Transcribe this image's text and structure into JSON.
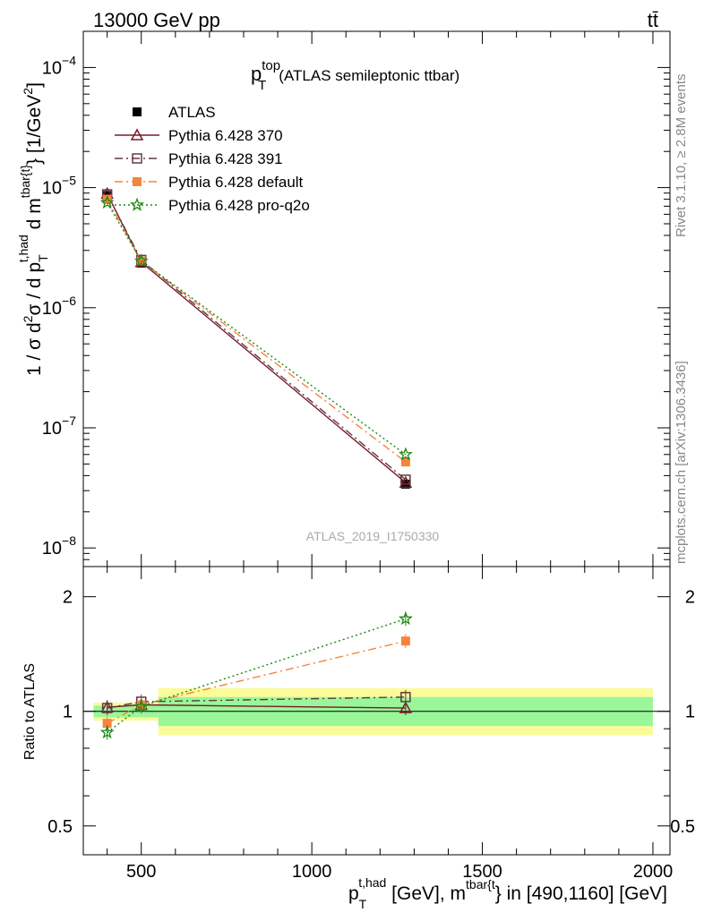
{
  "header": {
    "energy_label": "13000 GeV pp",
    "process_label": "tt̄"
  },
  "side_labels": {
    "rivet": "Rivet 3.1.10, ≥ 2.8M events",
    "mcplots": "mcplots.cern.ch [arXiv:1306.3436]"
  },
  "colors": {
    "atlas": "#000000",
    "p370": "#7b1a2a",
    "p391": "#5e3a45",
    "pdefault": "#f5843c",
    "pq2o": "#1a8a12",
    "band_inner": "#99f799",
    "band_outer": "#fbfb99"
  },
  "chart_data": [
    {
      "type": "line",
      "title_main": "p",
      "title_sup": "top",
      "title_sub": "T",
      "title_rest": "(ATLAS semileptonic ttbar)",
      "watermark": "ATLAS_2019_I1750330",
      "ylabel": "1 / σ d²σ / d p_T^{t,had} d m^{tbar{t}} [1/GeV²]",
      "ylabel_parts": {
        "pre": "1 / σ d",
        "sup2": "2",
        "mid": "σ / d p",
        "sub_T": "T",
        "sup_thad": "t,had",
        "d_m": " d m",
        "sup_tbar": "tbar{t}",
        "post": "} [1/GeV",
        "sup_unit": "2",
        "close": "]"
      },
      "yscale": "log",
      "ylim": [
        7e-09,
        0.0002
      ],
      "xlim": [
        330,
        2050
      ],
      "y_major_ticks": [
        {
          "value": 1e-08,
          "mantissa": "10",
          "exp": "−8"
        },
        {
          "value": 1e-07,
          "mantissa": "10",
          "exp": "−7"
        },
        {
          "value": 1e-06,
          "mantissa": "10",
          "exp": "−6"
        },
        {
          "value": 1e-05,
          "mantissa": "10",
          "exp": "−5"
        },
        {
          "value": 0.0001,
          "mantissa": "10",
          "exp": "−4"
        }
      ],
      "legend_position": "top-left",
      "series": [
        {
          "name": "ATLAS",
          "key": "atlas",
          "marker": "filled-square",
          "linestyle": "none",
          "x": [
            400,
            500,
            1275
          ],
          "y": [
            8.6e-06,
            2.35e-06,
            3.4e-08
          ]
        },
        {
          "name": "Pythia 6.428 370",
          "key": "p370",
          "marker": "open-triangle",
          "linestyle": "solid",
          "x": [
            400,
            500,
            1275
          ],
          "y": [
            8.9e-06,
            2.4e-06,
            3.5e-08
          ]
        },
        {
          "name": "Pythia 6.428 391",
          "key": "p391",
          "marker": "open-square",
          "linestyle": "dashdot",
          "x": [
            400,
            500,
            1275
          ],
          "y": [
            8.8e-06,
            2.5e-06,
            3.7e-08
          ]
        },
        {
          "name": "Pythia 6.428 default",
          "key": "pdefault",
          "marker": "filled-square",
          "linestyle": "dashdot",
          "x": [
            400,
            500,
            1275
          ],
          "y": [
            8e-06,
            2.45e-06,
            5.2e-08
          ]
        },
        {
          "name": "Pythia 6.428 pro-q2o",
          "key": "pq2o",
          "marker": "star",
          "linestyle": "dotted",
          "x": [
            400,
            500,
            1275
          ],
          "y": [
            7.5e-06,
            2.45e-06,
            6e-08
          ]
        }
      ]
    },
    {
      "type": "line",
      "ylabel": "Ratio to ATLAS",
      "xlabel_parts": {
        "p": "p",
        "sub_T": "T",
        "sup_thad": "t,had",
        "mid": " [GeV], m",
        "sup_tbar": "tbar{t",
        "post": "} in [490,1160] [GeV]"
      },
      "xlabel": "p_T^{t,had} [GeV], m^{tbar{t}} in [490,1160] [GeV]",
      "yscale": "log",
      "ylim": [
        0.42,
        2.4
      ],
      "xlim": [
        330,
        2050
      ],
      "y_tick_labels": [
        {
          "value": 0.5,
          "label": "0.5"
        },
        {
          "value": 1,
          "label": "1"
        },
        {
          "value": 2,
          "label": "2"
        }
      ],
      "x_tick_labels": [
        {
          "value": 500,
          "label": "500"
        },
        {
          "value": 1000,
          "label": "1000"
        },
        {
          "value": 1500,
          "label": "1500"
        },
        {
          "value": 2000,
          "label": "2000"
        }
      ],
      "uncertainty_bands": [
        {
          "x0": 360,
          "x1": 550,
          "inner": [
            0.965,
            1.035
          ],
          "outer": [
            0.945,
            1.055
          ]
        },
        {
          "x0": 550,
          "x1": 2000,
          "inner": [
            0.915,
            1.09
          ],
          "outer": [
            0.865,
            1.15
          ]
        }
      ],
      "series": [
        {
          "name": "Pythia 6.428 370",
          "key": "p370",
          "marker": "open-triangle",
          "linestyle": "solid",
          "x": [
            400,
            500,
            1275
          ],
          "y": [
            1.025,
            1.04,
            1.02
          ]
        },
        {
          "name": "Pythia 6.428 391",
          "key": "p391",
          "marker": "open-square",
          "linestyle": "dashdot",
          "x": [
            400,
            500,
            1275
          ],
          "y": [
            1.02,
            1.06,
            1.09
          ]
        },
        {
          "name": "Pythia 6.428 default",
          "key": "pdefault",
          "marker": "filled-square",
          "linestyle": "dashdot",
          "x": [
            400,
            500,
            1275
          ],
          "y": [
            0.93,
            1.04,
            1.53
          ]
        },
        {
          "name": "Pythia 6.428 pro-q2o",
          "key": "pq2o",
          "marker": "star",
          "linestyle": "dotted",
          "x": [
            400,
            500,
            1275
          ],
          "y": [
            0.88,
            1.03,
            1.75
          ]
        }
      ]
    }
  ]
}
